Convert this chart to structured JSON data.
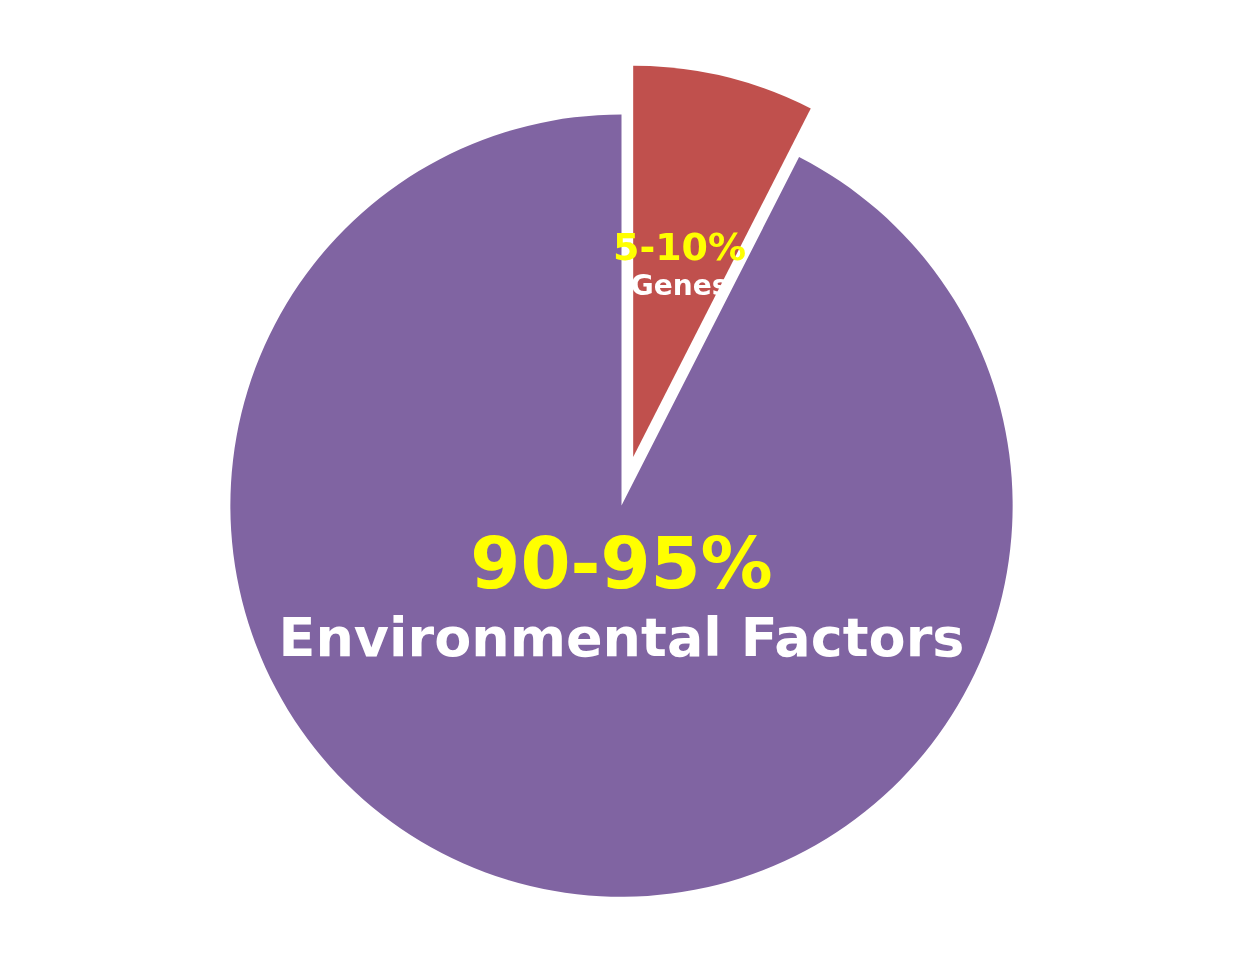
{
  "chart_data": {
    "type": "pie",
    "categories": [
      "Genes",
      "Environmental Factors"
    ],
    "values": [
      7.5,
      92.5
    ],
    "annotations": [
      "5-10%",
      "90-95%"
    ],
    "colors": [
      "#c0504d",
      "#8064a2"
    ],
    "legend": false
  }
}
